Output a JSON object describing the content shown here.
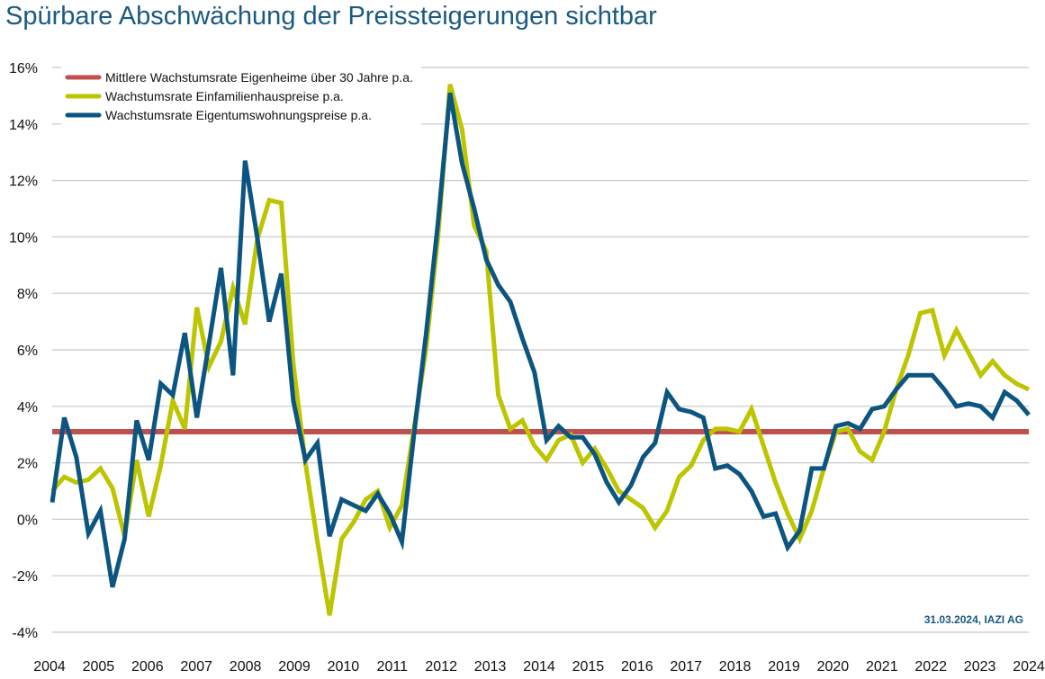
{
  "title": "Spürbare Abschwächung der Preissteigerungen sichtbar",
  "source": "31.03.2024, IAZI AG",
  "chart_data": {
    "type": "line",
    "title": "Spürbare Abschwächung der Preissteigerungen sichtbar",
    "xlabel": "",
    "ylabel": "",
    "ylim": [
      -4,
      16
    ],
    "xlim": [
      2004,
      2024
    ],
    "grid": true,
    "legend_position": "top-left",
    "y_ticks": [
      "-4%",
      "-2%",
      "0%",
      "2%",
      "4%",
      "6%",
      "8%",
      "10%",
      "12%",
      "14%",
      "16%"
    ],
    "y_tick_values": [
      -4,
      -2,
      0,
      2,
      4,
      6,
      8,
      10,
      12,
      14,
      16
    ],
    "x_ticks": [
      "2004",
      "2005",
      "2006",
      "2007",
      "2008",
      "2009",
      "2010",
      "2011",
      "2012",
      "2013",
      "2014",
      "2015",
      "2016",
      "2017",
      "2018",
      "2019",
      "2020",
      "2021",
      "2022",
      "2023",
      "2024"
    ],
    "series": [
      {
        "name": "Mittlere Wachstumsrate Eigenheime über 30 Jahre p.a.",
        "color": "#c0504d",
        "constant": 3.1
      },
      {
        "name": "Wachstumsrate Einfamilienhauspreise p.a.",
        "color": "#bcc500",
        "values": [
          1.0,
          1.5,
          1.3,
          1.4,
          1.8,
          1.1,
          -0.6,
          2.1,
          0.1,
          1.9,
          4.2,
          3.2,
          7.5,
          5.4,
          6.3,
          8.2,
          6.9,
          9.9,
          11.3,
          11.2,
          5.5,
          2.0,
          -0.8,
          -3.4,
          -0.7,
          -0.1,
          0.7,
          1.0,
          -0.3,
          0.5,
          3.2,
          6.0,
          10.0,
          15.4,
          13.8,
          10.4,
          9.5,
          4.4,
          3.2,
          3.5,
          2.6,
          2.1,
          2.8,
          3.0,
          2.0,
          2.5,
          1.8,
          1.0,
          0.7,
          0.4,
          -0.3,
          0.3,
          1.5,
          1.9,
          2.8,
          3.2,
          3.2,
          3.1,
          3.9,
          2.6,
          1.3,
          0.2,
          -0.7,
          0.3,
          1.8,
          3.1,
          3.2,
          2.4,
          2.1,
          3.1,
          4.6,
          5.8,
          7.3,
          7.4,
          5.8,
          6.7,
          5.9,
          5.1,
          5.6,
          5.1,
          4.8,
          4.6
        ]
      },
      {
        "name": "Wachstumsrate Eigentumswohnungspreise p.a.",
        "color": "#0b5580",
        "values": [
          0.6,
          3.6,
          2.2,
          -0.5,
          0.3,
          -2.4,
          -0.7,
          3.5,
          2.1,
          4.8,
          4.4,
          6.6,
          3.6,
          6.2,
          8.9,
          5.1,
          12.7,
          10.0,
          7.0,
          8.7,
          4.2,
          2.1,
          2.7,
          -0.6,
          0.7,
          0.5,
          0.3,
          0.9,
          0.2,
          -0.8,
          3.0,
          6.5,
          10.5,
          15.1,
          12.6,
          11.0,
          9.2,
          8.3,
          7.7,
          6.4,
          5.2,
          2.8,
          3.3,
          2.9,
          2.9,
          2.3,
          1.3,
          0.6,
          1.2,
          2.2,
          2.7,
          4.5,
          3.9,
          3.8,
          3.6,
          1.8,
          1.9,
          1.6,
          1.0,
          0.1,
          0.2,
          -1.0,
          -0.4,
          1.8,
          1.8,
          3.3,
          3.4,
          3.2,
          3.9,
          4.0,
          4.6,
          5.1,
          5.1,
          5.1,
          4.6,
          4.0,
          4.1,
          4.0,
          3.6,
          4.5,
          4.2,
          3.7
        ]
      }
    ]
  }
}
